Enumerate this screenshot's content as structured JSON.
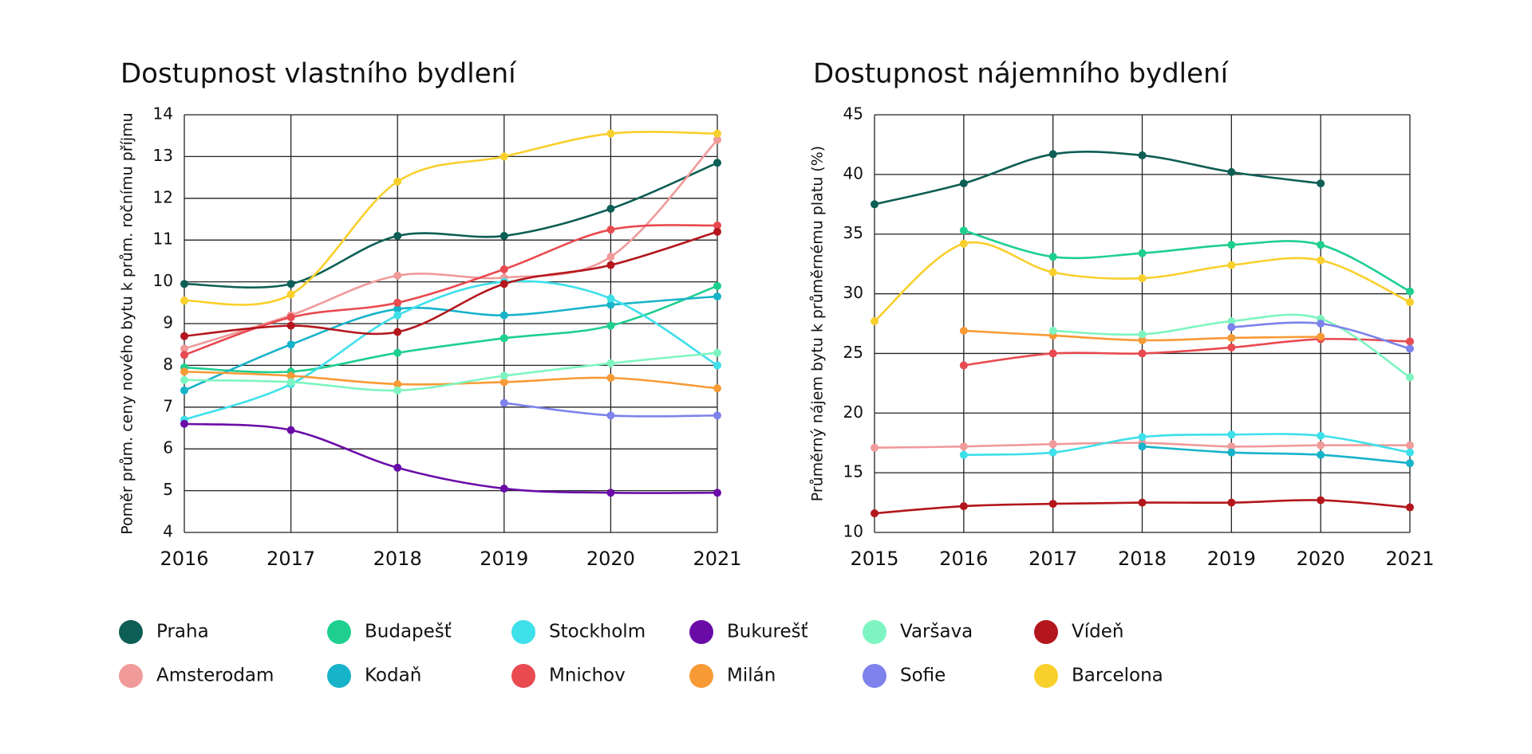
{
  "chart_data": [
    {
      "type": "line",
      "title": "Dostupnost vlastního bydlení",
      "ylabel": "Poměr prům. ceny nového bytu k prům. ročnímu příjmu",
      "categories": [
        "2016",
        "2017",
        "2018",
        "2019",
        "2020",
        "2021"
      ],
      "ylim": [
        4,
        14
      ],
      "yticks": [
        4,
        5,
        6,
        7,
        8,
        9,
        10,
        11,
        12,
        13,
        14
      ],
      "grid": true,
      "series": [
        {
          "name": "Praha",
          "color": "#0d5e55",
          "values": [
            9.95,
            9.95,
            11.1,
            11.1,
            11.75,
            12.85
          ]
        },
        {
          "name": "Amsterodam",
          "color": "#f09a9a",
          "values": [
            8.4,
            9.2,
            10.15,
            10.1,
            10.6,
            13.4
          ]
        },
        {
          "name": "Budapešť",
          "color": "#1ecf8f",
          "values": [
            7.95,
            7.85,
            8.3,
            8.65,
            8.95,
            9.9
          ]
        },
        {
          "name": "Kodaň",
          "color": "#17b3c9",
          "values": [
            7.4,
            8.5,
            9.35,
            9.2,
            9.45,
            9.65
          ]
        },
        {
          "name": "Stockholm",
          "color": "#3ee0ea",
          "values": [
            6.7,
            7.55,
            9.2,
            10.0,
            9.6,
            8.0
          ]
        },
        {
          "name": "Mnichov",
          "color": "#e84a50",
          "values": [
            8.25,
            9.15,
            9.5,
            10.3,
            11.25,
            11.35
          ]
        },
        {
          "name": "Bukurešť",
          "color": "#6a0ba8",
          "values": [
            6.6,
            6.45,
            5.55,
            5.05,
            4.95,
            4.95
          ]
        },
        {
          "name": "Milán",
          "color": "#f89a35",
          "values": [
            7.85,
            7.75,
            7.55,
            7.6,
            7.7,
            7.45
          ]
        },
        {
          "name": "Varšava",
          "color": "#7ef5c0",
          "values": [
            7.65,
            7.6,
            7.4,
            7.75,
            8.05,
            8.3
          ]
        },
        {
          "name": "Sofie",
          "color": "#7d82ec",
          "values": [
            null,
            null,
            null,
            7.1,
            6.8,
            6.8
          ]
        },
        {
          "name": "Vídeň",
          "color": "#b3161c",
          "values": [
            8.7,
            8.95,
            8.8,
            9.95,
            10.4,
            11.2
          ]
        },
        {
          "name": "Barcelona",
          "color": "#f9cf2c",
          "values": [
            9.55,
            9.7,
            12.4,
            13.0,
            13.55,
            13.55
          ]
        }
      ]
    },
    {
      "type": "line",
      "title": "Dostupnost nájemního bydlení",
      "ylabel": "Průměrný nájem bytu k průměrnému platu (%)",
      "categories": [
        "2015",
        "2016",
        "2017",
        "2018",
        "2019",
        "2020",
        "2021"
      ],
      "ylim": [
        10,
        45
      ],
      "yticks": [
        10,
        15,
        20,
        25,
        30,
        35,
        40,
        45
      ],
      "grid": true,
      "series": [
        {
          "name": "Praha",
          "color": "#0d5e55",
          "values": [
            37.5,
            39.25,
            41.7,
            41.6,
            40.2,
            39.25,
            null
          ]
        },
        {
          "name": "Amsterodam",
          "color": "#f09a9a",
          "values": [
            17.1,
            17.2,
            17.4,
            17.5,
            17.2,
            17.3,
            17.3
          ]
        },
        {
          "name": "Budapešť",
          "color": "#1ecf8f",
          "values": [
            null,
            35.3,
            33.1,
            33.4,
            34.1,
            34.1,
            30.2
          ]
        },
        {
          "name": "Kodaň",
          "color": "#17b3c9",
          "values": [
            null,
            null,
            null,
            17.2,
            16.7,
            16.5,
            15.8
          ]
        },
        {
          "name": "Stockholm",
          "color": "#3ee0ea",
          "values": [
            null,
            16.5,
            16.7,
            18.0,
            18.2,
            18.1,
            16.7
          ]
        },
        {
          "name": "Mnichov",
          "color": "#e84a50",
          "values": [
            null,
            24.0,
            25.0,
            25.0,
            25.5,
            26.2,
            26.0
          ]
        },
        {
          "name": "Bukurešť",
          "color": "#6a0ba8",
          "values": [
            null,
            null,
            null,
            null,
            null,
            null,
            null
          ]
        },
        {
          "name": "Milán",
          "color": "#f89a35",
          "values": [
            null,
            26.9,
            26.5,
            26.1,
            26.3,
            26.4,
            null
          ]
        },
        {
          "name": "Varšava",
          "color": "#7ef5c0",
          "values": [
            null,
            null,
            26.9,
            26.6,
            27.7,
            27.9,
            23.0
          ]
        },
        {
          "name": "Sofie",
          "color": "#7d82ec",
          "values": [
            null,
            null,
            null,
            null,
            27.2,
            27.5,
            25.4
          ]
        },
        {
          "name": "Vídeň",
          "color": "#b3161c",
          "values": [
            11.6,
            12.2,
            12.4,
            12.5,
            12.5,
            12.7,
            12.1
          ]
        },
        {
          "name": "Barcelona",
          "color": "#f9cf2c",
          "values": [
            27.7,
            34.2,
            31.8,
            31.3,
            32.4,
            32.8,
            29.3
          ]
        }
      ]
    }
  ]
}
